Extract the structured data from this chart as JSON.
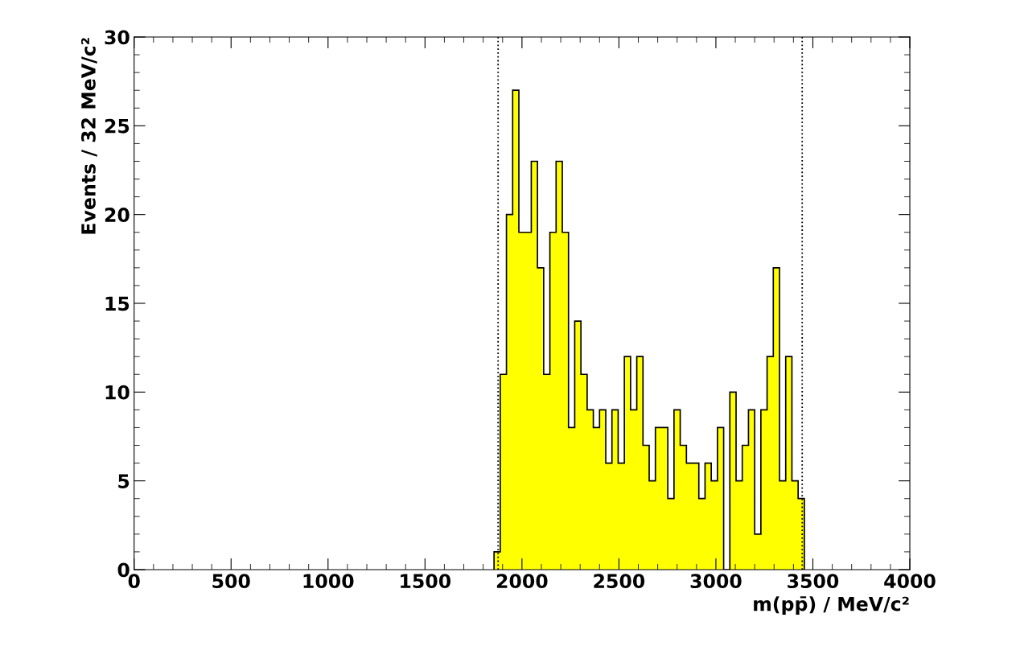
{
  "chart_data": {
    "type": "histogram",
    "xlabel": "m(pp̄) / MeV/c²",
    "ylabel": "Events / 32 MeV/c²",
    "bins": [
      1856,
      1888,
      1920,
      1952,
      1984,
      2016,
      2048,
      2080,
      2112,
      2144,
      2176,
      2208,
      2240,
      2272,
      2304,
      2336,
      2368,
      2400,
      2432,
      2464,
      2496,
      2528,
      2560,
      2592,
      2624,
      2656,
      2688,
      2720,
      2752,
      2784,
      2816,
      2848,
      2880,
      2912,
      2944,
      2976,
      3008,
      3040,
      3072,
      3104,
      3136,
      3168,
      3200,
      3232,
      3264,
      3296,
      3328,
      3360,
      3392,
      3424,
      3456
    ],
    "values": [
      1,
      11,
      20,
      27,
      19,
      19,
      23,
      17,
      11,
      19,
      23,
      19,
      8,
      14,
      11,
      9,
      8,
      9,
      6,
      9,
      6,
      12,
      9,
      12,
      7,
      5,
      8,
      8,
      4,
      9,
      7,
      6,
      6,
      4,
      6,
      5,
      8,
      0,
      10,
      5,
      7,
      9,
      2,
      9,
      12,
      17,
      5,
      12,
      5,
      4
    ],
    "color": "#ffff00",
    "xlim": [
      0,
      4000
    ],
    "xticks": [
      0,
      500,
      1000,
      1500,
      2000,
      2500,
      3000,
      3500,
      4000
    ],
    "ylim": [
      0,
      30
    ],
    "yticks": [
      0,
      5,
      10,
      15,
      20,
      25,
      30
    ],
    "ref_lines": [
      {
        "axis": "x",
        "value": 1877,
        "line_style": "dotted",
        "color": "#000000"
      },
      {
        "axis": "x",
        "value": 3445,
        "line_style": "dotted",
        "color": "#000000"
      }
    ],
    "grid": false
  }
}
